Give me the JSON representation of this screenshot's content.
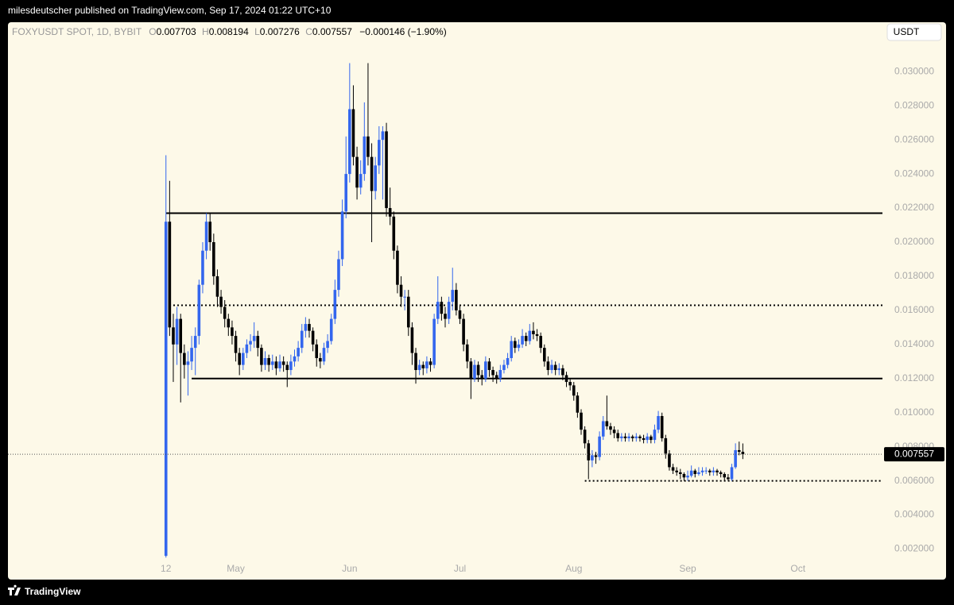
{
  "header": {
    "text": "milesdeutscher published on TradingView.com, Sep 17, 2024 01:22 UTC+10"
  },
  "footer": {
    "brand": "TradingView"
  },
  "chart_data": {
    "type": "candlestick",
    "symbol": "FOXYUSDT SPOT, 1D, BYBIT",
    "currency": "USDT",
    "legend_letters": [
      "O",
      "H",
      "L",
      "C"
    ],
    "change_label": "−0.000146 (−1.90%)",
    "up_color": "#3366ee",
    "down_color": "#000000",
    "background": "#fdf9e8",
    "xlim": [
      "2024-02-29",
      "2024-10-24"
    ],
    "xticks": [
      {
        "value": "2024-04-12",
        "label": "12"
      },
      {
        "value": "2024-05-01",
        "label": "May"
      },
      {
        "value": "2024-06-01",
        "label": "Jun"
      },
      {
        "value": "2024-07-01",
        "label": "Jul"
      },
      {
        "value": "2024-08-01",
        "label": "Aug"
      },
      {
        "value": "2024-09-01",
        "label": "Sep"
      },
      {
        "value": "2024-10-01",
        "label": "Oct"
      }
    ],
    "ylim": [
      0.0003,
      0.0329
    ],
    "yticks": [
      {
        "value": 0.002,
        "label": "0.002000"
      },
      {
        "value": 0.004,
        "label": "0.004000"
      },
      {
        "value": 0.006,
        "label": "0.006000"
      },
      {
        "value": 0.008,
        "label": "0.008000"
      },
      {
        "value": 0.01,
        "label": "0.010000"
      },
      {
        "value": 0.012,
        "label": "0.012000"
      },
      {
        "value": 0.014,
        "label": "0.014000"
      },
      {
        "value": 0.016,
        "label": "0.016000"
      },
      {
        "value": 0.018,
        "label": "0.018000"
      },
      {
        "value": 0.02,
        "label": "0.020000"
      },
      {
        "value": 0.022,
        "label": "0.022000"
      },
      {
        "value": 0.024,
        "label": "0.024000"
      },
      {
        "value": 0.026,
        "label": "0.026000"
      },
      {
        "value": 0.028,
        "label": "0.028000"
      },
      {
        "value": 0.03,
        "label": "0.030000"
      }
    ],
    "levels": [
      {
        "value": 0.0217,
        "from": "2024-04-12",
        "style": "solid"
      },
      {
        "value": 0.0163,
        "from": "2024-04-14",
        "style": "dotted"
      },
      {
        "value": 0.012,
        "from": "2024-04-19",
        "style": "solid"
      },
      {
        "value": 0.006,
        "from": "2024-08-04",
        "style": "dotted"
      }
    ],
    "x": [
      "2024-04-12",
      "2024-04-13",
      "2024-04-14",
      "2024-04-15",
      "2024-04-16",
      "2024-04-17",
      "2024-04-18",
      "2024-04-19",
      "2024-04-20",
      "2024-04-21",
      "2024-04-22",
      "2024-04-23",
      "2024-04-24",
      "2024-04-25",
      "2024-04-26",
      "2024-04-27",
      "2024-04-28",
      "2024-04-29",
      "2024-04-30",
      "2024-05-01",
      "2024-05-02",
      "2024-05-03",
      "2024-05-04",
      "2024-05-05",
      "2024-05-06",
      "2024-05-07",
      "2024-05-08",
      "2024-05-09",
      "2024-05-10",
      "2024-05-11",
      "2024-05-12",
      "2024-05-13",
      "2024-05-14",
      "2024-05-15",
      "2024-05-16",
      "2024-05-17",
      "2024-05-18",
      "2024-05-19",
      "2024-05-20",
      "2024-05-21",
      "2024-05-22",
      "2024-05-23",
      "2024-05-24",
      "2024-05-25",
      "2024-05-26",
      "2024-05-27",
      "2024-05-28",
      "2024-05-29",
      "2024-05-30",
      "2024-05-31",
      "2024-06-01",
      "2024-06-02",
      "2024-06-03",
      "2024-06-04",
      "2024-06-05",
      "2024-06-06",
      "2024-06-07",
      "2024-06-08",
      "2024-06-09",
      "2024-06-10",
      "2024-06-11",
      "2024-06-12",
      "2024-06-13",
      "2024-06-14",
      "2024-06-15",
      "2024-06-16",
      "2024-06-17",
      "2024-06-18",
      "2024-06-19",
      "2024-06-20",
      "2024-06-21",
      "2024-06-22",
      "2024-06-23",
      "2024-06-24",
      "2024-06-25",
      "2024-06-26",
      "2024-06-27",
      "2024-06-28",
      "2024-06-29",
      "2024-06-30",
      "2024-07-01",
      "2024-07-02",
      "2024-07-03",
      "2024-07-04",
      "2024-07-05",
      "2024-07-06",
      "2024-07-07",
      "2024-07-08",
      "2024-07-09",
      "2024-07-10",
      "2024-07-11",
      "2024-07-12",
      "2024-07-13",
      "2024-07-14",
      "2024-07-15",
      "2024-07-16",
      "2024-07-17",
      "2024-07-18",
      "2024-07-19",
      "2024-07-20",
      "2024-07-21",
      "2024-07-22",
      "2024-07-23",
      "2024-07-24",
      "2024-07-25",
      "2024-07-26",
      "2024-07-27",
      "2024-07-28",
      "2024-07-29",
      "2024-07-30",
      "2024-07-31",
      "2024-08-01",
      "2024-08-02",
      "2024-08-03",
      "2024-08-04",
      "2024-08-05",
      "2024-08-06",
      "2024-08-07",
      "2024-08-08",
      "2024-08-09",
      "2024-08-10",
      "2024-08-11",
      "2024-08-12",
      "2024-08-13",
      "2024-08-14",
      "2024-08-15",
      "2024-08-16",
      "2024-08-17",
      "2024-08-18",
      "2024-08-19",
      "2024-08-20",
      "2024-08-21",
      "2024-08-22",
      "2024-08-23",
      "2024-08-24",
      "2024-08-25",
      "2024-08-26",
      "2024-08-27",
      "2024-08-28",
      "2024-08-29",
      "2024-08-30",
      "2024-08-31",
      "2024-09-01",
      "2024-09-02",
      "2024-09-03",
      "2024-09-04",
      "2024-09-05",
      "2024-09-06",
      "2024-09-07",
      "2024-09-08",
      "2024-09-09",
      "2024-09-10",
      "2024-09-11",
      "2024-09-12",
      "2024-09-13",
      "2024-09-14",
      "2024-09-15",
      "2024-09-16"
    ],
    "ohlc": [
      [
        0.0016,
        0.0251,
        0.0015,
        0.0212
      ],
      [
        0.0212,
        0.0236,
        0.0145,
        0.015
      ],
      [
        0.015,
        0.0158,
        0.0118,
        0.014
      ],
      [
        0.014,
        0.0162,
        0.0128,
        0.0155
      ],
      [
        0.0155,
        0.0158,
        0.0106,
        0.0135
      ],
      [
        0.0135,
        0.014,
        0.012,
        0.0128
      ],
      [
        0.0128,
        0.0136,
        0.011,
        0.013
      ],
      [
        0.013,
        0.0145,
        0.0125,
        0.0138
      ],
      [
        0.0138,
        0.015,
        0.0122,
        0.0145
      ],
      [
        0.0145,
        0.0178,
        0.014,
        0.0175
      ],
      [
        0.0175,
        0.02,
        0.017,
        0.0195
      ],
      [
        0.0195,
        0.0217,
        0.019,
        0.0212
      ],
      [
        0.0212,
        0.0217,
        0.0195,
        0.02
      ],
      [
        0.02,
        0.0205,
        0.0175,
        0.018
      ],
      [
        0.018,
        0.0184,
        0.0162,
        0.0168
      ],
      [
        0.0168,
        0.0172,
        0.0158,
        0.0162
      ],
      [
        0.0162,
        0.0166,
        0.015,
        0.0155
      ],
      [
        0.0155,
        0.0158,
        0.0145,
        0.015
      ],
      [
        0.015,
        0.0154,
        0.014,
        0.0145
      ],
      [
        0.0145,
        0.0148,
        0.013,
        0.0135
      ],
      [
        0.0135,
        0.0138,
        0.0122,
        0.0128
      ],
      [
        0.0128,
        0.0138,
        0.0125,
        0.0135
      ],
      [
        0.0135,
        0.0143,
        0.0132,
        0.014
      ],
      [
        0.014,
        0.0146,
        0.0136,
        0.0142
      ],
      [
        0.0142,
        0.0153,
        0.0138,
        0.0145
      ],
      [
        0.0145,
        0.0148,
        0.0133,
        0.0138
      ],
      [
        0.0138,
        0.014,
        0.0124,
        0.0128
      ],
      [
        0.0128,
        0.0136,
        0.0125,
        0.0132
      ],
      [
        0.0132,
        0.0134,
        0.0124,
        0.0128
      ],
      [
        0.0128,
        0.0134,
        0.0125,
        0.013
      ],
      [
        0.013,
        0.0133,
        0.0122,
        0.0126
      ],
      [
        0.0126,
        0.0134,
        0.0124,
        0.013
      ],
      [
        0.013,
        0.0133,
        0.0124,
        0.0128
      ],
      [
        0.0128,
        0.013,
        0.0115,
        0.0125
      ],
      [
        0.0125,
        0.0134,
        0.0122,
        0.013
      ],
      [
        0.013,
        0.0137,
        0.0127,
        0.0133
      ],
      [
        0.0133,
        0.0142,
        0.013,
        0.0138
      ],
      [
        0.0138,
        0.0152,
        0.0135,
        0.0148
      ],
      [
        0.0148,
        0.0156,
        0.0144,
        0.0152
      ],
      [
        0.0152,
        0.0155,
        0.0144,
        0.0148
      ],
      [
        0.0148,
        0.015,
        0.0136,
        0.014
      ],
      [
        0.014,
        0.0143,
        0.0127,
        0.0132
      ],
      [
        0.0132,
        0.0135,
        0.0126,
        0.013
      ],
      [
        0.013,
        0.0141,
        0.0128,
        0.0138
      ],
      [
        0.0138,
        0.0146,
        0.0135,
        0.0142
      ],
      [
        0.0142,
        0.0158,
        0.014,
        0.0155
      ],
      [
        0.0155,
        0.0178,
        0.0152,
        0.0172
      ],
      [
        0.0172,
        0.0195,
        0.0168,
        0.019
      ],
      [
        0.019,
        0.0225,
        0.0186,
        0.0218
      ],
      [
        0.0218,
        0.0262,
        0.0214,
        0.024
      ],
      [
        0.024,
        0.0305,
        0.0235,
        0.0278
      ],
      [
        0.0278,
        0.0292,
        0.0245,
        0.025
      ],
      [
        0.025,
        0.0256,
        0.0225,
        0.0232
      ],
      [
        0.0232,
        0.0248,
        0.0228,
        0.024
      ],
      [
        0.024,
        0.0282,
        0.0236,
        0.0262
      ],
      [
        0.0262,
        0.0305,
        0.0245,
        0.025
      ],
      [
        0.025,
        0.0258,
        0.02,
        0.023
      ],
      [
        0.023,
        0.025,
        0.0225,
        0.0245
      ],
      [
        0.0245,
        0.0268,
        0.024,
        0.026
      ],
      [
        0.026,
        0.0268,
        0.0225,
        0.0265
      ],
      [
        0.0265,
        0.027,
        0.0215,
        0.022
      ],
      [
        0.022,
        0.0232,
        0.021,
        0.0215
      ],
      [
        0.0215,
        0.0218,
        0.019,
        0.0195
      ],
      [
        0.0195,
        0.0198,
        0.017,
        0.0175
      ],
      [
        0.0175,
        0.018,
        0.0162,
        0.0168
      ],
      [
        0.0168,
        0.0172,
        0.016,
        0.0168
      ],
      [
        0.0168,
        0.0172,
        0.0145,
        0.015
      ],
      [
        0.015,
        0.0153,
        0.0128,
        0.0135
      ],
      [
        0.0135,
        0.0138,
        0.0117,
        0.0125
      ],
      [
        0.0125,
        0.0131,
        0.0122,
        0.0128
      ],
      [
        0.0128,
        0.013,
        0.0122,
        0.0126
      ],
      [
        0.0126,
        0.0133,
        0.0123,
        0.013
      ],
      [
        0.013,
        0.0132,
        0.0124,
        0.0128
      ],
      [
        0.0128,
        0.0158,
        0.0126,
        0.0155
      ],
      [
        0.0155,
        0.018,
        0.0152,
        0.0165
      ],
      [
        0.0165,
        0.0168,
        0.0154,
        0.0158
      ],
      [
        0.0158,
        0.0162,
        0.015,
        0.0155
      ],
      [
        0.0155,
        0.0168,
        0.0152,
        0.0165
      ],
      [
        0.0165,
        0.0185,
        0.016,
        0.0172
      ],
      [
        0.0172,
        0.0176,
        0.0157,
        0.016
      ],
      [
        0.016,
        0.0163,
        0.0152,
        0.0155
      ],
      [
        0.0155,
        0.0158,
        0.0136,
        0.014
      ],
      [
        0.014,
        0.0143,
        0.0126,
        0.013
      ],
      [
        0.013,
        0.0132,
        0.0108,
        0.012
      ],
      [
        0.012,
        0.0131,
        0.0118,
        0.0128
      ],
      [
        0.0128,
        0.013,
        0.0118,
        0.0122
      ],
      [
        0.0122,
        0.0125,
        0.0116,
        0.012
      ],
      [
        0.012,
        0.0133,
        0.0118,
        0.013
      ],
      [
        0.013,
        0.0132,
        0.0121,
        0.0125
      ],
      [
        0.0125,
        0.0127,
        0.0118,
        0.0122
      ],
      [
        0.0122,
        0.0124,
        0.0117,
        0.012
      ],
      [
        0.012,
        0.0128,
        0.0118,
        0.0125
      ],
      [
        0.0125,
        0.0131,
        0.0123,
        0.0128
      ],
      [
        0.0128,
        0.0135,
        0.0126,
        0.0132
      ],
      [
        0.0132,
        0.0145,
        0.013,
        0.0142
      ],
      [
        0.0142,
        0.0144,
        0.0135,
        0.0138
      ],
      [
        0.0138,
        0.0143,
        0.0136,
        0.014
      ],
      [
        0.014,
        0.0149,
        0.0138,
        0.0145
      ],
      [
        0.0145,
        0.0147,
        0.0139,
        0.0142
      ],
      [
        0.0142,
        0.0152,
        0.014,
        0.0148
      ],
      [
        0.0148,
        0.0153,
        0.0143,
        0.0146
      ],
      [
        0.0146,
        0.0149,
        0.0142,
        0.0145
      ],
      [
        0.0145,
        0.0147,
        0.0135,
        0.0138
      ],
      [
        0.0138,
        0.014,
        0.0127,
        0.013
      ],
      [
        0.013,
        0.0133,
        0.0122,
        0.0125
      ],
      [
        0.0125,
        0.0131,
        0.0123,
        0.0128
      ],
      [
        0.0128,
        0.013,
        0.0122,
        0.0125
      ],
      [
        0.0125,
        0.0129,
        0.0122,
        0.0126
      ],
      [
        0.0126,
        0.0128,
        0.0119,
        0.0122
      ],
      [
        0.0122,
        0.0124,
        0.0115,
        0.0118
      ],
      [
        0.0118,
        0.012,
        0.0113,
        0.0116
      ],
      [
        0.0116,
        0.0118,
        0.0107,
        0.011
      ],
      [
        0.011,
        0.0112,
        0.0097,
        0.01
      ],
      [
        0.01,
        0.0102,
        0.0087,
        0.009
      ],
      [
        0.009,
        0.0092,
        0.0079,
        0.0082
      ],
      [
        0.0082,
        0.0084,
        0.0061,
        0.0072
      ],
      [
        0.0072,
        0.0078,
        0.0068,
        0.0075
      ],
      [
        0.0075,
        0.0077,
        0.007,
        0.0074
      ],
      [
        0.0074,
        0.0089,
        0.0072,
        0.0086
      ],
      [
        0.0086,
        0.0098,
        0.0084,
        0.0095
      ],
      [
        0.0095,
        0.011,
        0.009,
        0.0092
      ],
      [
        0.0092,
        0.0094,
        0.0087,
        0.009
      ],
      [
        0.009,
        0.0092,
        0.0085,
        0.0088
      ],
      [
        0.0088,
        0.009,
        0.0083,
        0.0085
      ],
      [
        0.0085,
        0.0088,
        0.0083,
        0.0086
      ],
      [
        0.0086,
        0.0088,
        0.0083,
        0.0085
      ],
      [
        0.0085,
        0.0088,
        0.0083,
        0.0086
      ],
      [
        0.0086,
        0.0087,
        0.0083,
        0.0085
      ],
      [
        0.0085,
        0.0088,
        0.0083,
        0.0086
      ],
      [
        0.0086,
        0.0087,
        0.0083,
        0.0085
      ],
      [
        0.0085,
        0.0087,
        0.0082,
        0.0084
      ],
      [
        0.0084,
        0.0088,
        0.0082,
        0.0086
      ],
      [
        0.0086,
        0.0087,
        0.0082,
        0.0084
      ],
      [
        0.0084,
        0.0093,
        0.0082,
        0.009
      ],
      [
        0.009,
        0.0101,
        0.0088,
        0.0098
      ],
      [
        0.0098,
        0.01,
        0.0083,
        0.0085
      ],
      [
        0.0085,
        0.0087,
        0.0073,
        0.0076
      ],
      [
        0.0076,
        0.0078,
        0.0066,
        0.0068
      ],
      [
        0.0068,
        0.007,
        0.0064,
        0.0066
      ],
      [
        0.0066,
        0.0068,
        0.0063,
        0.0065
      ],
      [
        0.0065,
        0.0067,
        0.0061,
        0.0064
      ],
      [
        0.0064,
        0.0065,
        0.006,
        0.0062
      ],
      [
        0.0062,
        0.0066,
        0.006,
        0.0063
      ],
      [
        0.0063,
        0.0069,
        0.0062,
        0.0066
      ],
      [
        0.0066,
        0.0067,
        0.0062,
        0.0064
      ],
      [
        0.0064,
        0.0068,
        0.0063,
        0.0065
      ],
      [
        0.0065,
        0.0068,
        0.0063,
        0.0066
      ],
      [
        0.0066,
        0.0068,
        0.0064,
        0.0066
      ],
      [
        0.0066,
        0.0067,
        0.0063,
        0.0065
      ],
      [
        0.0065,
        0.0068,
        0.0063,
        0.0066
      ],
      [
        0.0066,
        0.0067,
        0.0063,
        0.0065
      ],
      [
        0.0065,
        0.0066,
        0.0062,
        0.0064
      ],
      [
        0.0064,
        0.0065,
        0.006,
        0.0062
      ],
      [
        0.0062,
        0.0064,
        0.006,
        0.0061
      ],
      [
        0.0061,
        0.007,
        0.006,
        0.0068
      ],
      [
        0.0068,
        0.0082,
        0.0067,
        0.0078
      ],
      [
        0.0078,
        0.0083,
        0.0075,
        0.007703
      ],
      [
        0.007703,
        0.008194,
        0.007276,
        0.007557
      ]
    ]
  }
}
